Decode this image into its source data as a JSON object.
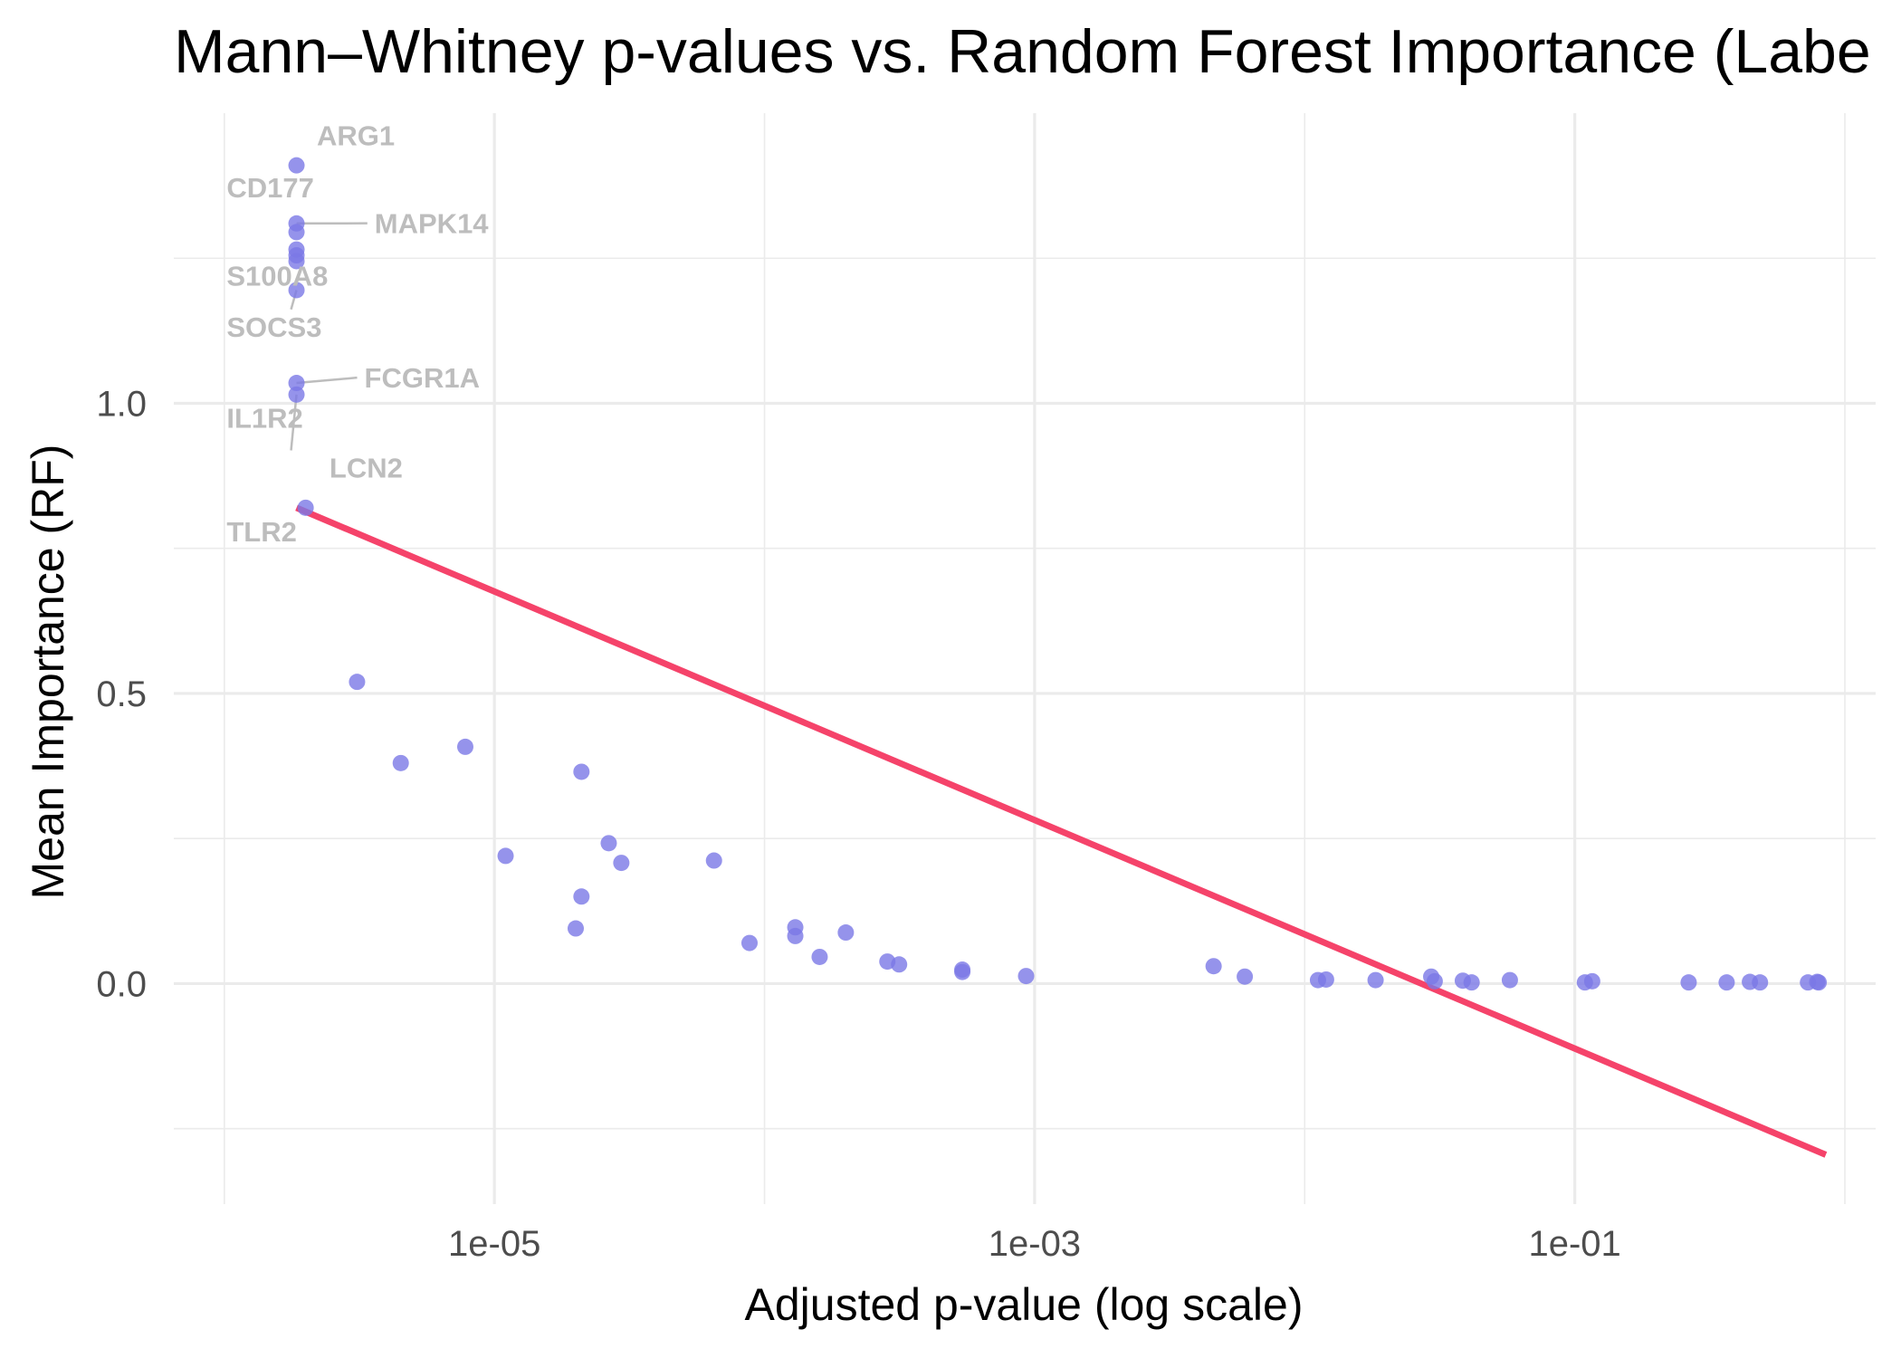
{
  "chart_data": {
    "type": "scatter",
    "title": "Mann–Whitney p-values vs. Random Forest Importance (Labe",
    "xlabel": "Adjusted p-value (log scale)",
    "ylabel": "Mean Importance (RF)",
    "x_scale": "log10",
    "xlim": [
      6.5e-07,
      1.3
    ],
    "ylim": [
      -0.38,
      1.5
    ],
    "x_ticks": [
      {
        "value": 1e-05,
        "label": "1e-05"
      },
      {
        "value": 0.001,
        "label": "1e-03"
      },
      {
        "value": 0.1,
        "label": "1e-01"
      }
    ],
    "x_minor_ticks": [
      1e-06,
      0.0001,
      0.01,
      1
    ],
    "y_ticks": [
      {
        "value": 0.0,
        "label": "0.0"
      },
      {
        "value": 0.5,
        "label": "0.5"
      },
      {
        "value": 1.0,
        "label": "1.0"
      }
    ],
    "y_minor_ticks": [
      -0.25,
      0.25,
      0.75,
      1.25
    ],
    "grid": true,
    "point_color": "#7b78e6",
    "trend_color": "#f5436a",
    "label_color": "#bdbdbd",
    "trend_line": {
      "x": [
        1.85e-06,
        0.85
      ],
      "y": [
        0.82,
        -0.295
      ]
    },
    "points": [
      {
        "x": 1.85e-06,
        "y": 1.41
      },
      {
        "x": 1.85e-06,
        "y": 1.31
      },
      {
        "x": 1.85e-06,
        "y": 1.295
      },
      {
        "x": 1.85e-06,
        "y": 1.265
      },
      {
        "x": 1.85e-06,
        "y": 1.255
      },
      {
        "x": 1.85e-06,
        "y": 1.245
      },
      {
        "x": 1.85e-06,
        "y": 1.195
      },
      {
        "x": 1.85e-06,
        "y": 1.035
      },
      {
        "x": 1.85e-06,
        "y": 1.015
      },
      {
        "x": 2e-06,
        "y": 0.82
      },
      {
        "x": 3.1e-06,
        "y": 0.52
      },
      {
        "x": 4.5e-06,
        "y": 0.38
      },
      {
        "x": 7.8e-06,
        "y": 0.408
      },
      {
        "x": 1.1e-05,
        "y": 0.22
      },
      {
        "x": 2e-05,
        "y": 0.095
      },
      {
        "x": 2.1e-05,
        "y": 0.15
      },
      {
        "x": 2.1e-05,
        "y": 0.365
      },
      {
        "x": 2.65e-05,
        "y": 0.242
      },
      {
        "x": 2.95e-05,
        "y": 0.208
      },
      {
        "x": 6.5e-05,
        "y": 0.212
      },
      {
        "x": 8.8e-05,
        "y": 0.07
      },
      {
        "x": 0.00013,
        "y": 0.097
      },
      {
        "x": 0.00013,
        "y": 0.082
      },
      {
        "x": 0.00016,
        "y": 0.046
      },
      {
        "x": 0.0002,
        "y": 0.088
      },
      {
        "x": 0.000285,
        "y": 0.038
      },
      {
        "x": 0.000315,
        "y": 0.033
      },
      {
        "x": 0.00054,
        "y": 0.024
      },
      {
        "x": 0.00054,
        "y": 0.02
      },
      {
        "x": 0.00093,
        "y": 0.013
      },
      {
        "x": 0.0046,
        "y": 0.03
      },
      {
        "x": 0.006,
        "y": 0.012
      },
      {
        "x": 0.0112,
        "y": 0.006
      },
      {
        "x": 0.012,
        "y": 0.007
      },
      {
        "x": 0.0183,
        "y": 0.006
      },
      {
        "x": 0.0294,
        "y": 0.012
      },
      {
        "x": 0.0303,
        "y": 0.004
      },
      {
        "x": 0.0385,
        "y": 0.005
      },
      {
        "x": 0.0415,
        "y": 0.002
      },
      {
        "x": 0.0575,
        "y": 0.006
      },
      {
        "x": 0.109,
        "y": 0.002
      },
      {
        "x": 0.116,
        "y": 0.004
      },
      {
        "x": 0.264,
        "y": 0.002
      },
      {
        "x": 0.365,
        "y": 0.002
      },
      {
        "x": 0.445,
        "y": 0.003
      },
      {
        "x": 0.485,
        "y": 0.002
      },
      {
        "x": 0.73,
        "y": 0.002
      },
      {
        "x": 0.79,
        "y": 0.003
      },
      {
        "x": 0.8,
        "y": 0.002
      }
    ],
    "labels": [
      {
        "text": "ARG1",
        "point_x": 1.85e-06,
        "point_y": 1.41,
        "label_x": 2.2e-06,
        "label_y": 1.445,
        "anchor": "start",
        "leader": false
      },
      {
        "text": "CD177",
        "point_x": 1.85e-06,
        "point_y": 1.31,
        "label_x": 1.02e-06,
        "label_y": 1.355,
        "anchor": "start",
        "leader": false
      },
      {
        "text": "MAPK14",
        "point_x": 1.85e-06,
        "point_y": 1.31,
        "label_x": 3.6e-06,
        "label_y": 1.293,
        "anchor": "start",
        "leader": true
      },
      {
        "text": "S100A8",
        "point_x": 1.85e-06,
        "point_y": 1.195,
        "label_x": 1.02e-06,
        "label_y": 1.203,
        "anchor": "start",
        "leader": false
      },
      {
        "text": "SOCS3",
        "point_x": 1.85e-06,
        "point_y": 1.195,
        "label_x": 1.02e-06,
        "label_y": 1.115,
        "anchor": "start",
        "leader": true
      },
      {
        "text": "FCGR1A",
        "point_x": 1.85e-06,
        "point_y": 1.035,
        "label_x": 3.3e-06,
        "label_y": 1.027,
        "anchor": "start",
        "leader": true
      },
      {
        "text": "IL1R2",
        "point_x": 1.85e-06,
        "point_y": 1.015,
        "label_x": 1.02e-06,
        "label_y": 0.958,
        "anchor": "start",
        "leader": false
      },
      {
        "text": "LCN2",
        "point_x": 1.85e-06,
        "point_y": 1.015,
        "label_x": 2.45e-06,
        "label_y": 0.872,
        "anchor": "start",
        "leader": true
      },
      {
        "text": "TLR2",
        "point_x": 2e-06,
        "point_y": 0.82,
        "label_x": 1.02e-06,
        "label_y": 0.762,
        "anchor": "start",
        "leader": false
      }
    ]
  }
}
